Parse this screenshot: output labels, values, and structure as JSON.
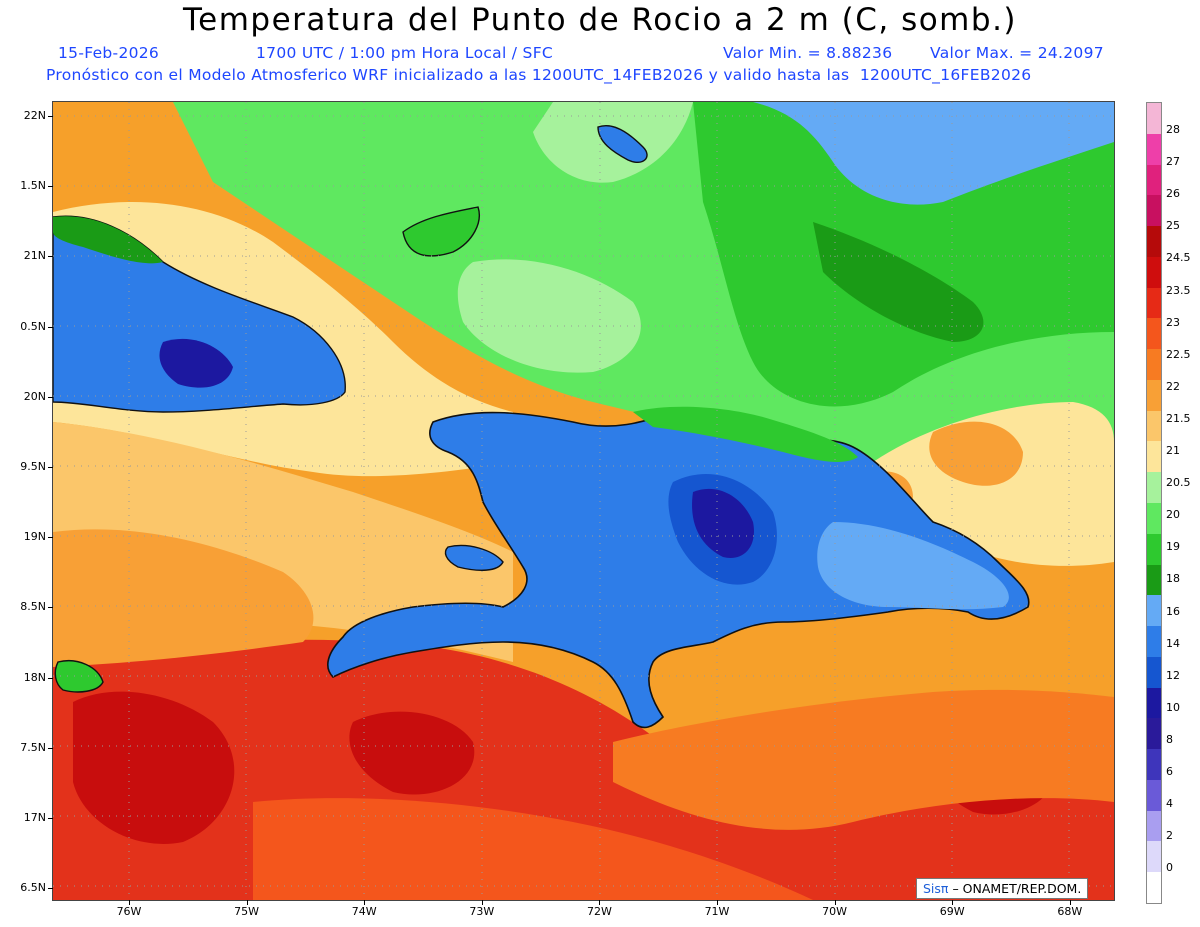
{
  "header": {
    "title": "Temperatura del Punto de Rocio a 2 m (C, somb.)",
    "date": "15-Feb-2026",
    "time": "1700 UTC / 1:00 pm Hora Local / SFC",
    "min_value": "Valor Min. = 8.88236",
    "max_value": "Valor Max. = 24.2097",
    "model_info": "Pronóstico con el Modelo Atmosferico WRF inicializado a las 1200UTC_14FEB2026 y valido hasta las  1200UTC_16FEB2026"
  },
  "axes": {
    "lat_labels": [
      "22N",
      "1.5N",
      "21N",
      "0.5N",
      "20N",
      "9.5N",
      "19N",
      "8.5N",
      "18N",
      "7.5N",
      "17N",
      "6.5N"
    ],
    "lon_labels": [
      "76W",
      "75W",
      "74W",
      "73W",
      "72W",
      "71W",
      "70W",
      "69W",
      "68W"
    ]
  },
  "colorbar": {
    "labels": [
      "28",
      "27",
      "26",
      "25",
      "24.5",
      "23.5",
      "23",
      "22.5",
      "22",
      "21.5",
      "21",
      "20.5",
      "20",
      "19",
      "18",
      "16",
      "14",
      "12",
      "10",
      "8",
      "6",
      "4",
      "2",
      "0"
    ],
    "colors": [
      "#f4b6d6",
      "#ee3fa9",
      "#e0217d",
      "#c81060",
      "#b50a0a",
      "#cf0d0d",
      "#e62a16",
      "#f4561c",
      "#f77b22",
      "#f8a036",
      "#fbc66a",
      "#fde59a",
      "#a6f29c",
      "#5fe860",
      "#2ec92f",
      "#1a9b16",
      "#64aaf5",
      "#2e7de8",
      "#1556d0",
      "#1c18a0",
      "#2a1a9a",
      "#3e35bb",
      "#6a5ad8",
      "#a99ef0",
      "#ddd9fa",
      "#ffffff"
    ]
  },
  "credit": {
    "sis": "Sisπ",
    "text": "– ONAMET/REP.DOM."
  }
}
